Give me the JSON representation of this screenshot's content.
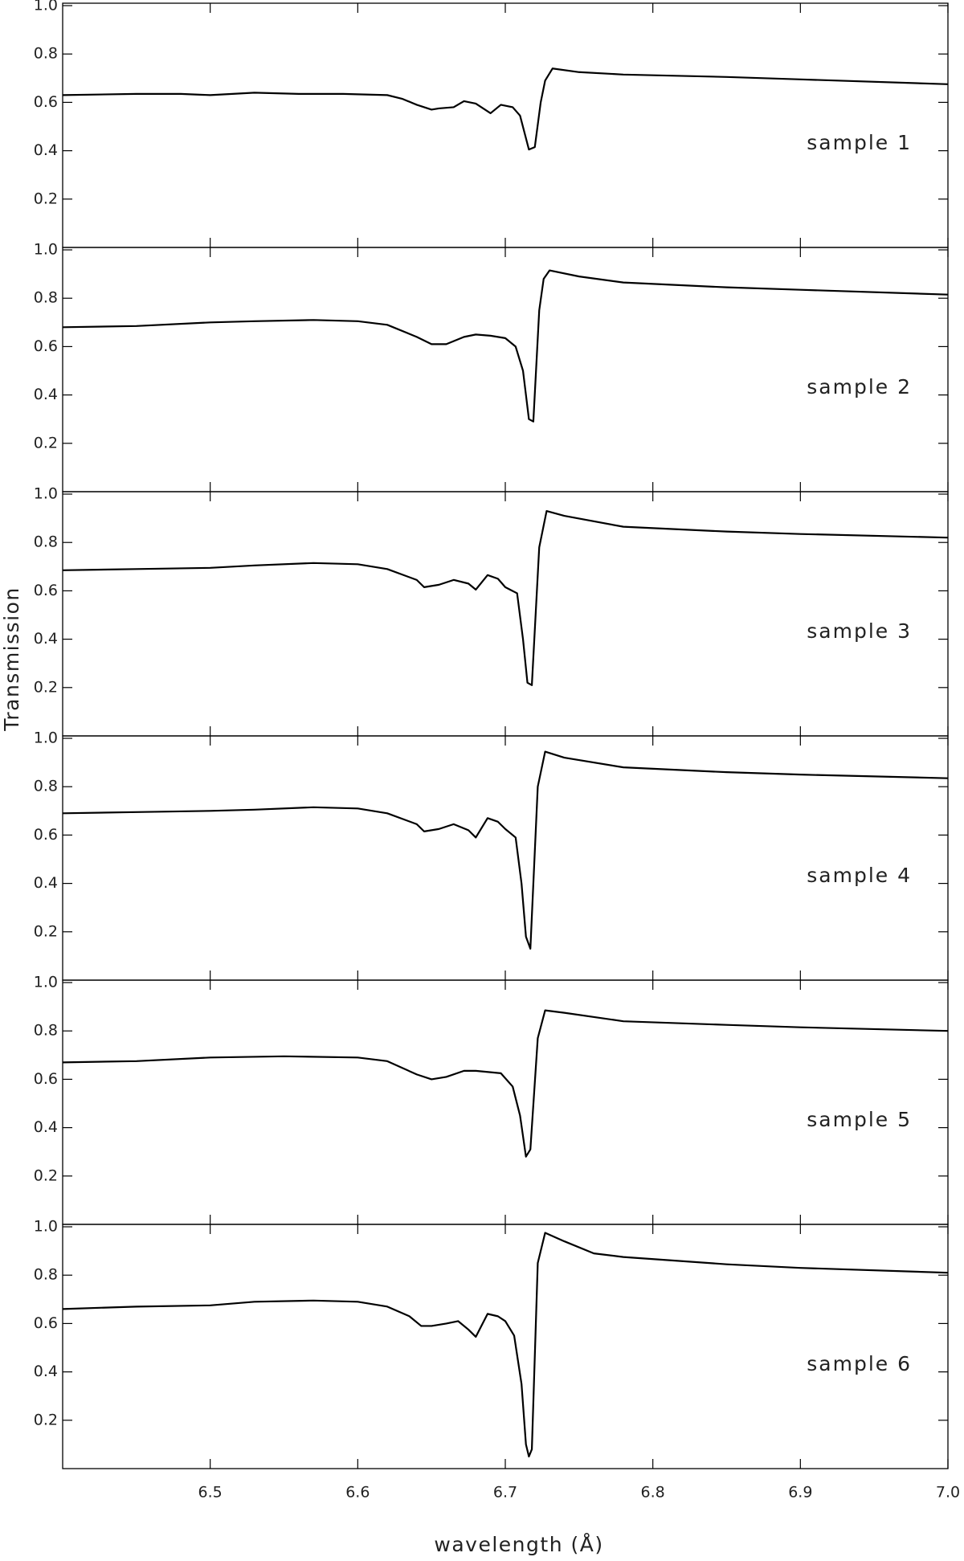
{
  "xlabel": "wavelength (Å)",
  "ylabel": "Transmission",
  "chart_data": [
    {
      "type": "line",
      "annotation": "sample 1",
      "xlim": [
        6.4,
        7.0
      ],
      "ylim": [
        0,
        1.01
      ],
      "yticks": [
        0.2,
        0.4,
        0.6,
        0.8,
        {
          "value": 1,
          "label": "1.0"
        }
      ],
      "x": [
        6.4,
        6.45,
        6.48,
        6.5,
        6.53,
        6.56,
        6.59,
        6.62,
        6.63,
        6.64,
        6.65,
        6.655,
        6.665,
        6.672,
        6.68,
        6.69,
        6.697,
        6.705,
        6.71,
        6.716,
        6.72,
        6.724,
        6.727,
        6.732,
        6.75,
        6.78,
        6.85,
        6.9,
        7.0
      ],
      "values": [
        0.63,
        0.635,
        0.635,
        0.63,
        0.64,
        0.635,
        0.635,
        0.63,
        0.615,
        0.59,
        0.57,
        0.575,
        0.58,
        0.605,
        0.595,
        0.555,
        0.59,
        0.58,
        0.545,
        0.405,
        0.415,
        0.6,
        0.69,
        0.74,
        0.725,
        0.715,
        0.705,
        0.695,
        0.675
      ]
    },
    {
      "type": "line",
      "annotation": "sample 2",
      "xlim": [
        6.4,
        7.0
      ],
      "ylim": [
        0,
        1.01
      ],
      "yticks": [
        0.2,
        0.4,
        0.6,
        0.8,
        {
          "value": 1,
          "label": "1.0"
        }
      ],
      "x": [
        6.4,
        6.45,
        6.5,
        6.53,
        6.57,
        6.6,
        6.62,
        6.64,
        6.65,
        6.66,
        6.672,
        6.68,
        6.69,
        6.7,
        6.707,
        6.712,
        6.716,
        6.719,
        6.723,
        6.726,
        6.73,
        6.75,
        6.78,
        6.85,
        6.9,
        7.0
      ],
      "values": [
        0.68,
        0.685,
        0.7,
        0.705,
        0.71,
        0.705,
        0.69,
        0.64,
        0.61,
        0.61,
        0.64,
        0.65,
        0.645,
        0.635,
        0.6,
        0.5,
        0.3,
        0.29,
        0.75,
        0.88,
        0.915,
        0.89,
        0.865,
        0.845,
        0.835,
        0.815
      ]
    },
    {
      "type": "line",
      "annotation": "sample 3",
      "xlim": [
        6.4,
        7.0
      ],
      "ylim": [
        0,
        1.01
      ],
      "yticks": [
        0.2,
        0.4,
        0.6,
        0.8,
        {
          "value": 1,
          "label": "1.0"
        }
      ],
      "x": [
        6.4,
        6.45,
        6.5,
        6.53,
        6.57,
        6.6,
        6.62,
        6.64,
        6.645,
        6.655,
        6.665,
        6.675,
        6.68,
        6.688,
        6.695,
        6.7,
        6.708,
        6.712,
        6.715,
        6.718,
        6.723,
        6.728,
        6.74,
        6.78,
        6.85,
        6.9,
        7.0
      ],
      "values": [
        0.685,
        0.69,
        0.695,
        0.705,
        0.715,
        0.71,
        0.69,
        0.645,
        0.615,
        0.625,
        0.645,
        0.63,
        0.605,
        0.665,
        0.65,
        0.615,
        0.59,
        0.4,
        0.22,
        0.21,
        0.78,
        0.93,
        0.91,
        0.865,
        0.845,
        0.835,
        0.82
      ]
    },
    {
      "type": "line",
      "annotation": "sample 4",
      "xlim": [
        6.4,
        7.0
      ],
      "ylim": [
        0,
        1.01
      ],
      "yticks": [
        0.2,
        0.4,
        0.6,
        0.8,
        {
          "value": 1,
          "label": "1.0"
        }
      ],
      "x": [
        6.4,
        6.45,
        6.5,
        6.53,
        6.57,
        6.6,
        6.62,
        6.64,
        6.645,
        6.655,
        6.665,
        6.675,
        6.68,
        6.688,
        6.695,
        6.7,
        6.707,
        6.711,
        6.714,
        6.717,
        6.722,
        6.727,
        6.74,
        6.78,
        6.85,
        6.9,
        7.0
      ],
      "values": [
        0.69,
        0.695,
        0.7,
        0.705,
        0.715,
        0.71,
        0.69,
        0.645,
        0.615,
        0.625,
        0.645,
        0.62,
        0.59,
        0.67,
        0.655,
        0.625,
        0.59,
        0.4,
        0.18,
        0.13,
        0.8,
        0.945,
        0.92,
        0.88,
        0.86,
        0.85,
        0.835
      ]
    },
    {
      "type": "line",
      "annotation": "sample 5",
      "xlim": [
        6.4,
        7.0
      ],
      "ylim": [
        0,
        1.01
      ],
      "yticks": [
        0.2,
        0.4,
        0.6,
        0.8,
        {
          "value": 1,
          "label": "1.0"
        }
      ],
      "x": [
        6.4,
        6.45,
        6.5,
        6.55,
        6.6,
        6.62,
        6.64,
        6.65,
        6.66,
        6.672,
        6.68,
        6.697,
        6.705,
        6.71,
        6.714,
        6.717,
        6.722,
        6.727,
        6.74,
        6.78,
        6.85,
        6.9,
        7.0
      ],
      "values": [
        0.67,
        0.675,
        0.69,
        0.695,
        0.69,
        0.675,
        0.62,
        0.6,
        0.61,
        0.635,
        0.635,
        0.625,
        0.57,
        0.45,
        0.28,
        0.31,
        0.77,
        0.885,
        0.875,
        0.84,
        0.825,
        0.815,
        0.8
      ]
    },
    {
      "type": "line",
      "annotation": "sample 6",
      "xlim": [
        6.4,
        7.0
      ],
      "ylim": [
        0,
        1.01
      ],
      "yticks": [
        0.2,
        0.4,
        0.6,
        0.8,
        {
          "value": 1,
          "label": "1.0"
        }
      ],
      "xticks": [
        6.5,
        6.6,
        6.7,
        6.8,
        6.9,
        {
          "value": 7,
          "label": "7.0"
        }
      ],
      "x": [
        6.4,
        6.45,
        6.5,
        6.53,
        6.57,
        6.6,
        6.62,
        6.635,
        6.643,
        6.65,
        6.66,
        6.668,
        6.675,
        6.68,
        6.688,
        6.695,
        6.7,
        6.706,
        6.711,
        6.714,
        6.716,
        6.718,
        6.722,
        6.727,
        6.74,
        6.76,
        6.78,
        6.85,
        6.9,
        7.0
      ],
      "values": [
        0.66,
        0.67,
        0.675,
        0.69,
        0.695,
        0.69,
        0.67,
        0.63,
        0.59,
        0.59,
        0.6,
        0.61,
        0.575,
        0.545,
        0.64,
        0.63,
        0.61,
        0.55,
        0.35,
        0.1,
        0.05,
        0.08,
        0.85,
        0.975,
        0.94,
        0.89,
        0.875,
        0.845,
        0.83,
        0.81
      ]
    }
  ]
}
